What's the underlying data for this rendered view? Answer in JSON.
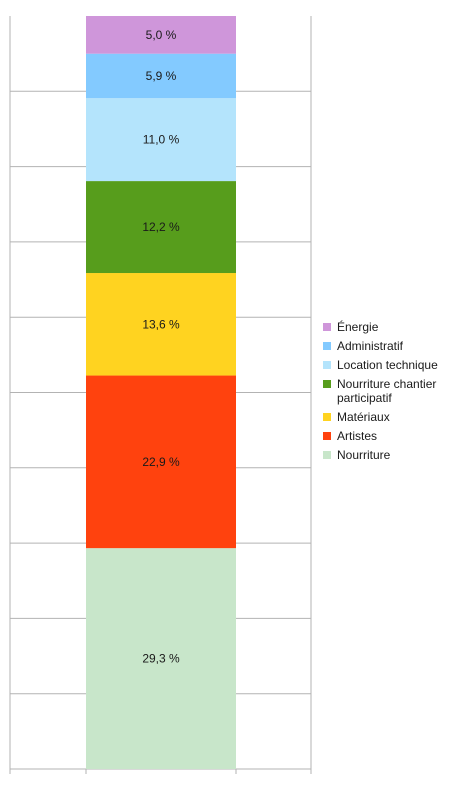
{
  "chart_data": {
    "type": "bar",
    "stacked": true,
    "normalized": true,
    "grid": "horizontal",
    "legend_position": "right",
    "ylim": [
      0,
      100
    ],
    "series": [
      {
        "name": "Nourriture",
        "value": 29.3,
        "label": "29,3 %",
        "color": "#c8e6ca"
      },
      {
        "name": "Artistes",
        "value": 22.9,
        "label": "22,9 %",
        "color": "#ff420e"
      },
      {
        "name": "Matériaux",
        "value": 13.6,
        "label": "13,6 %",
        "color": "#ffd320"
      },
      {
        "name": "Nourriture chantier participatif",
        "value": 12.2,
        "label": "12,2 %",
        "color": "#579d1c"
      },
      {
        "name": "Location technique",
        "value": 11.0,
        "label": "11,0 %",
        "color": "#b4e4fc"
      },
      {
        "name": "Administratif",
        "value": 5.9,
        "label": "5,9 %",
        "color": "#83caff"
      },
      {
        "name": "Énergie",
        "value": 5.0,
        "label": "5,0 %",
        "color": "#cf96da"
      }
    ],
    "legend_order": [
      "Énergie",
      "Administratif",
      "Location technique",
      "Nourriture chantier participatif",
      "Matériaux",
      "Artistes",
      "Nourriture"
    ]
  }
}
